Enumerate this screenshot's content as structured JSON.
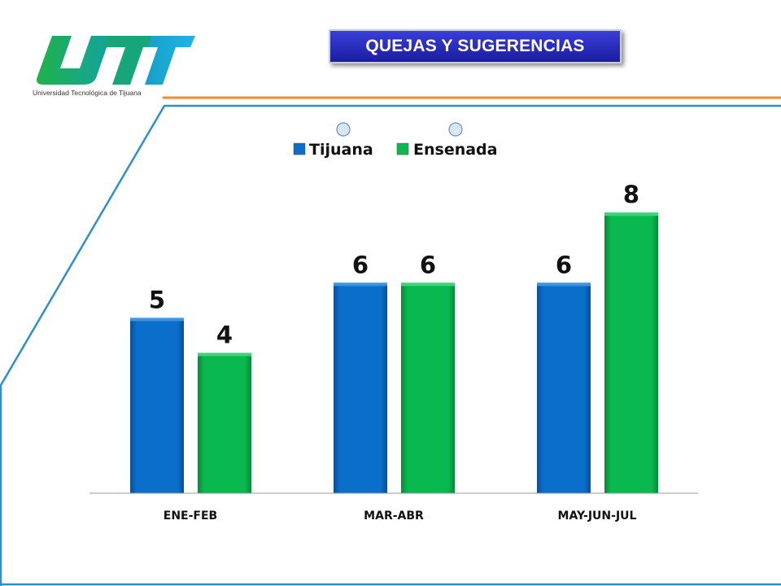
{
  "header": {
    "title": "QUEJAS Y SUGERENCIAS",
    "logo_text": "UTT",
    "logo_caption": "Universidad Tecnológica de Tijuana"
  },
  "colors": {
    "tijuana": "#0a6fca",
    "ensenada": "#09b84f",
    "accent_orange": "#f08a2c",
    "frame_blue": "#2f8fca"
  },
  "chart_data": {
    "type": "bar",
    "categories": [
      "ENE-FEB",
      "MAR-ABR",
      "MAY-JUN-JUL"
    ],
    "series": [
      {
        "name": "Tijuana",
        "values": [
          5,
          6,
          6
        ]
      },
      {
        "name": "Ensenada",
        "values": [
          4,
          6,
          8
        ]
      }
    ],
    "ylim": [
      0,
      10
    ],
    "grid": false,
    "legend": "top-center",
    "data_labels": true
  }
}
